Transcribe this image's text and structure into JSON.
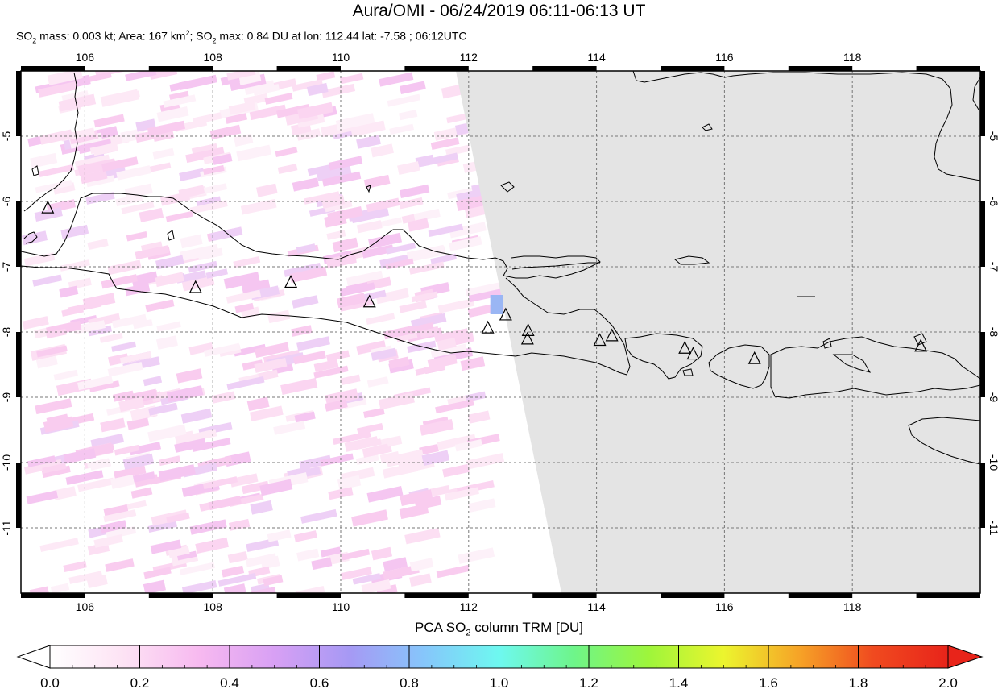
{
  "header": {
    "title": "Aura/OMI - 06/24/2019 06:11-06:13 UT",
    "subtitle_prefix": "SO",
    "subtitle_mass": " mass: 0.003 kt; Area: 167 km",
    "subtitle_sep": "; SO",
    "subtitle_rest": " max: 0.84 DU at lon: 112.44 lat: -7.58 ; 06:12UTC"
  },
  "map": {
    "lon_range": [
      105.0,
      120.0
    ],
    "lat_range": [
      -12.0,
      -4.0
    ],
    "lon_ticks": [
      "106",
      "108",
      "110",
      "112",
      "114",
      "116",
      "118"
    ],
    "lat_ticks": [
      "-5",
      "-6",
      "-7",
      "-8",
      "-9",
      "-10",
      "-11"
    ],
    "land_color": "#000000",
    "nodata_color": "#e4e4e4",
    "volcano_icon": "triangle-icon",
    "volcanoes": [
      {
        "lon": 105.42,
        "lat": -6.1
      },
      {
        "lon": 107.73,
        "lat": -7.32
      },
      {
        "lon": 109.22,
        "lat": -7.24
      },
      {
        "lon": 110.45,
        "lat": -7.54
      },
      {
        "lon": 112.3,
        "lat": -7.94
      },
      {
        "lon": 112.58,
        "lat": -7.74
      },
      {
        "lon": 112.93,
        "lat": -7.98
      },
      {
        "lon": 112.92,
        "lat": -8.11
      },
      {
        "lon": 114.05,
        "lat": -8.13
      },
      {
        "lon": 114.24,
        "lat": -8.06
      },
      {
        "lon": 115.38,
        "lat": -8.25
      },
      {
        "lon": 115.51,
        "lat": -8.34
      },
      {
        "lon": 116.47,
        "lat": -8.41
      },
      {
        "lon": 119.07,
        "lat": -8.22
      }
    ],
    "max_pixel": {
      "lon": 112.44,
      "lat": -7.58,
      "value": 0.84
    }
  },
  "colorbar": {
    "label_prefix": "PCA SO",
    "label_suffix": " column TRM [DU]",
    "ticks": [
      "0.0",
      "0.2",
      "0.4",
      "0.6",
      "0.8",
      "1.0",
      "1.2",
      "1.4",
      "1.6",
      "1.8",
      "2.0"
    ],
    "colors": [
      "#ffffff",
      "#fde2f4",
      "#f7b9f0",
      "#d8a0f4",
      "#a699f4",
      "#86c6fb",
      "#6ef8f0",
      "#6ef58a",
      "#9ef53b",
      "#ecf52e",
      "#f6a427",
      "#f04a1f",
      "#e8241a"
    ]
  }
}
